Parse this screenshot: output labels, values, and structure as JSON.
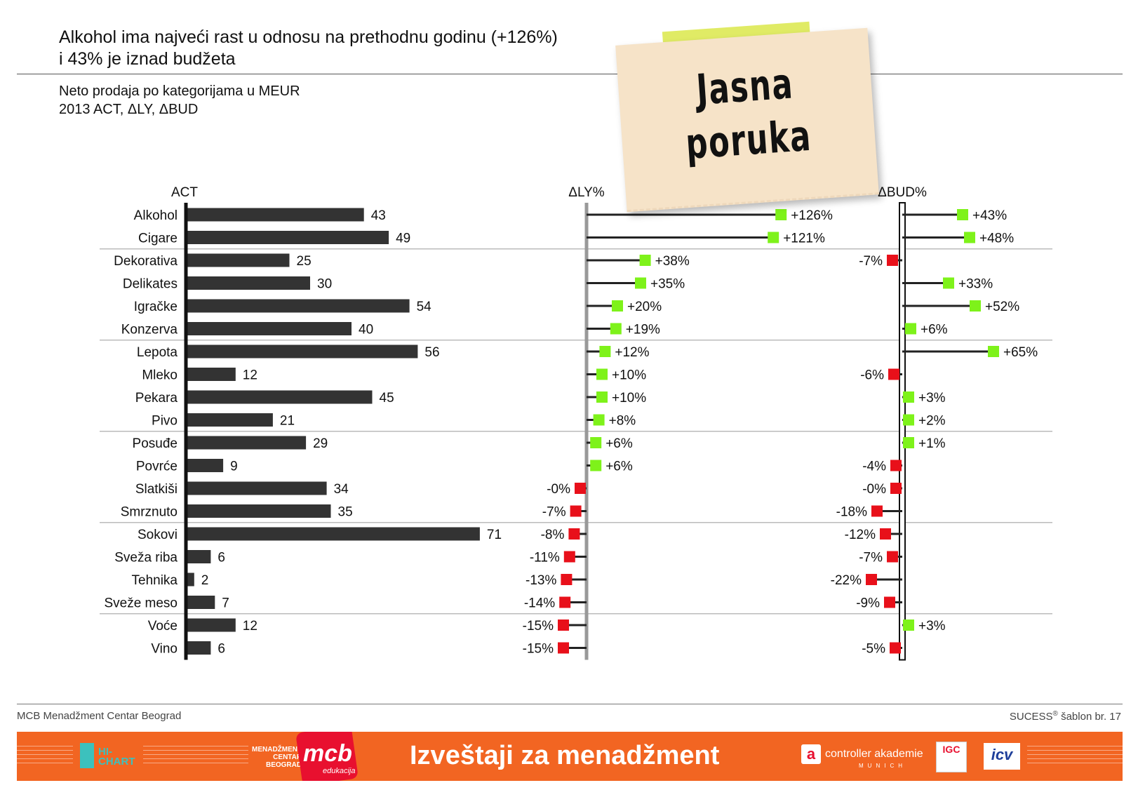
{
  "header": {
    "title": "Alkohol ima najveći rast u odnosu na prethodnu godinu (+126%)\ni 43% je iznad budžeta",
    "subtitle_line1": "Neto prodaja po kategorijama u MEUR",
    "subtitle_line2": "2013 ACT, ΔLY, ΔBUD"
  },
  "sticky_note": {
    "line1": "Jasna",
    "line2": "poruka"
  },
  "chart_data": {
    "type": "bar",
    "title": "Neto prodaja po kategorijama u MEUR",
    "panels": [
      {
        "label": "ACT",
        "kind": "bar"
      },
      {
        "label": "ΔLY%",
        "kind": "lollipop"
      },
      {
        "label": "ΔBUD%",
        "kind": "lollipop"
      }
    ],
    "categories": [
      "Alkohol",
      "Cigare",
      "Dekorativa",
      "Delikates",
      "Igračke",
      "Konzerva",
      "Lepota",
      "Mleko",
      "Pekara",
      "Pivo",
      "Posuđe",
      "Povrće",
      "Slatkiši",
      "Smrznuto",
      "Sokovi",
      "Sveža riba",
      "Tehnika",
      "Sveže meso",
      "Voće",
      "Vino"
    ],
    "series": [
      {
        "name": "ACT",
        "values": [
          43,
          49,
          25,
          30,
          54,
          40,
          56,
          12,
          45,
          21,
          29,
          9,
          34,
          35,
          71,
          6,
          2,
          7,
          12,
          6
        ],
        "labels": [
          "43",
          "49",
          "25",
          "30",
          "54",
          "40",
          "56",
          "12",
          "45",
          "21",
          "29",
          "9",
          "34",
          "35",
          "71",
          "6",
          "2",
          "7",
          "12",
          "6"
        ]
      },
      {
        "name": "ΔLY%",
        "values": [
          126,
          121,
          38,
          35,
          20,
          19,
          12,
          10,
          10,
          8,
          6,
          6,
          0,
          -7,
          -8,
          -11,
          -13,
          -14,
          -15,
          -15
        ],
        "labels": [
          "+126%",
          "+121%",
          "+38%",
          "+35%",
          "+20%",
          "+19%",
          "+12%",
          "+10%",
          "+10%",
          "+8%",
          "+6%",
          "+6%",
          "-0%",
          "-7%",
          "-8%",
          "-11%",
          "-13%",
          "-14%",
          "-15%",
          "-15%"
        ]
      },
      {
        "name": "ΔBUD%",
        "values": [
          43,
          48,
          -7,
          33,
          52,
          6,
          65,
          -6,
          3,
          2,
          1,
          -4,
          0,
          -18,
          -12,
          -7,
          -22,
          -9,
          3,
          -5
        ],
        "labels": [
          "+43%",
          "+48%",
          "-7%",
          "+33%",
          "+52%",
          "+6%",
          "+65%",
          "-6%",
          "+3%",
          "+2%",
          "+1%",
          "-4%",
          "-0%",
          "-18%",
          "-12%",
          "-7%",
          "-22%",
          "-9%",
          "+3%",
          "-5%"
        ]
      }
    ],
    "group_separators_after": [
      1,
      5,
      9,
      13,
      17
    ],
    "colors": {
      "bar": "#333333",
      "positive": "#7ef21a",
      "negative": "#e8101a",
      "axis_ly": "#999999",
      "axis_bud": "#111111",
      "separator": "#bbbbbb"
    }
  },
  "footer": {
    "left": "MCB Menadžment Centar Beograd",
    "right_name": "SUCESS",
    "right_reg": "®",
    "right_rest": " šablon br. 17"
  },
  "banner": {
    "title": "Izveštaji za menadžment",
    "color": "#f26522",
    "hichart_line1": "HI-",
    "hichart_line2": "CHART",
    "mcb_line1": "MENADŽMENT",
    "mcb_line2": "CENTAR",
    "mcb_line3": "BEOGRAD",
    "mcb_logo": "mcb",
    "mcb_sub": "edukacija",
    "ca_mark": "a",
    "ca_name": "controller akademie",
    "ca_sub": "MUNICH",
    "igc": "IGC",
    "icv": "icv"
  }
}
